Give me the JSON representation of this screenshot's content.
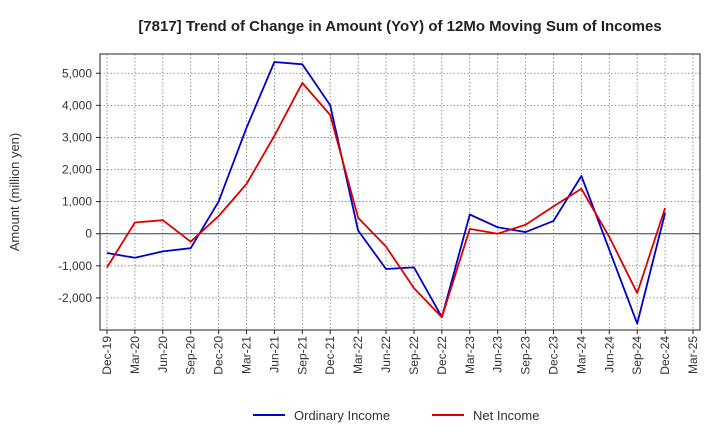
{
  "chart_data": {
    "type": "line",
    "title": "[7817]  Trend of Change in Amount (YoY) of 12Mo Moving Sum of Incomes",
    "xlabel": "",
    "ylabel": "Amount (million yen)",
    "ylim": [
      -3000,
      5600
    ],
    "yticks": [
      -2000,
      -1000,
      0,
      1000,
      2000,
      3000,
      4000,
      5000
    ],
    "ytick_labels": [
      "-2,000",
      "-1,000",
      "0",
      "1,000",
      "2,000",
      "3,000",
      "4,000",
      "5,000"
    ],
    "categories": [
      "Dec-19",
      "Mar-20",
      "Jun-20",
      "Sep-20",
      "Dec-20",
      "Mar-21",
      "Jun-21",
      "Sep-21",
      "Dec-21",
      "Mar-22",
      "Jun-22",
      "Sep-22",
      "Dec-22",
      "Mar-23",
      "Jun-23",
      "Sep-23",
      "Dec-23",
      "Mar-24",
      "Jun-24",
      "Sep-24",
      "Dec-24",
      "Mar-25"
    ],
    "series": [
      {
        "name": "Ordinary Income",
        "color": "#0000cc",
        "values": [
          -600,
          -750,
          -550,
          -450,
          1000,
          3300,
          5350,
          5280,
          4000,
          100,
          -1100,
          -1050,
          -2600,
          600,
          200,
          50,
          400,
          1800,
          -500,
          -2800,
          650,
          null
        ]
      },
      {
        "name": "Net Income",
        "color": "#dd0000",
        "values": [
          -1050,
          350,
          420,
          -250,
          550,
          1550,
          3050,
          4700,
          3700,
          500,
          -400,
          -1700,
          -2600,
          150,
          0,
          280,
          850,
          1400,
          -100,
          -1850,
          800,
          null
        ]
      }
    ],
    "grid": true,
    "legend_position": "bottom-center"
  }
}
